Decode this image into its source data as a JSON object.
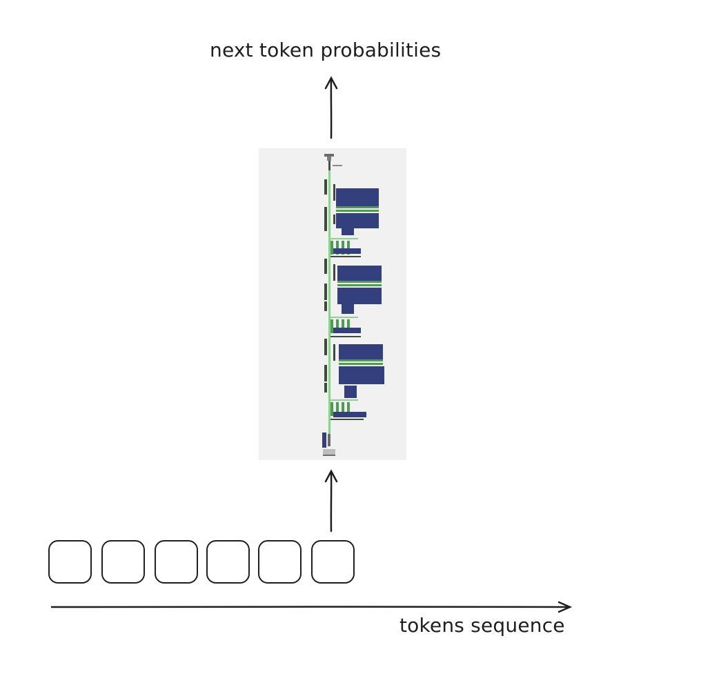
{
  "labels": {
    "output": "next token probabilities",
    "sequence_axis": "tokens sequence"
  },
  "tokens": [
    {
      "label": ""
    },
    {
      "label": ""
    },
    {
      "label": ""
    },
    {
      "label": ""
    },
    {
      "label": ""
    },
    {
      "label": ""
    }
  ],
  "model": {
    "blocks": 3
  },
  "colors": {
    "ink": "#1e1e1e",
    "panel_bg": "#f1f1f1",
    "matrix_blue": "#34407d",
    "connector_green": "#8fcf8f",
    "node_green": "#4f9a54",
    "node_dark": "#3d4a3d"
  }
}
